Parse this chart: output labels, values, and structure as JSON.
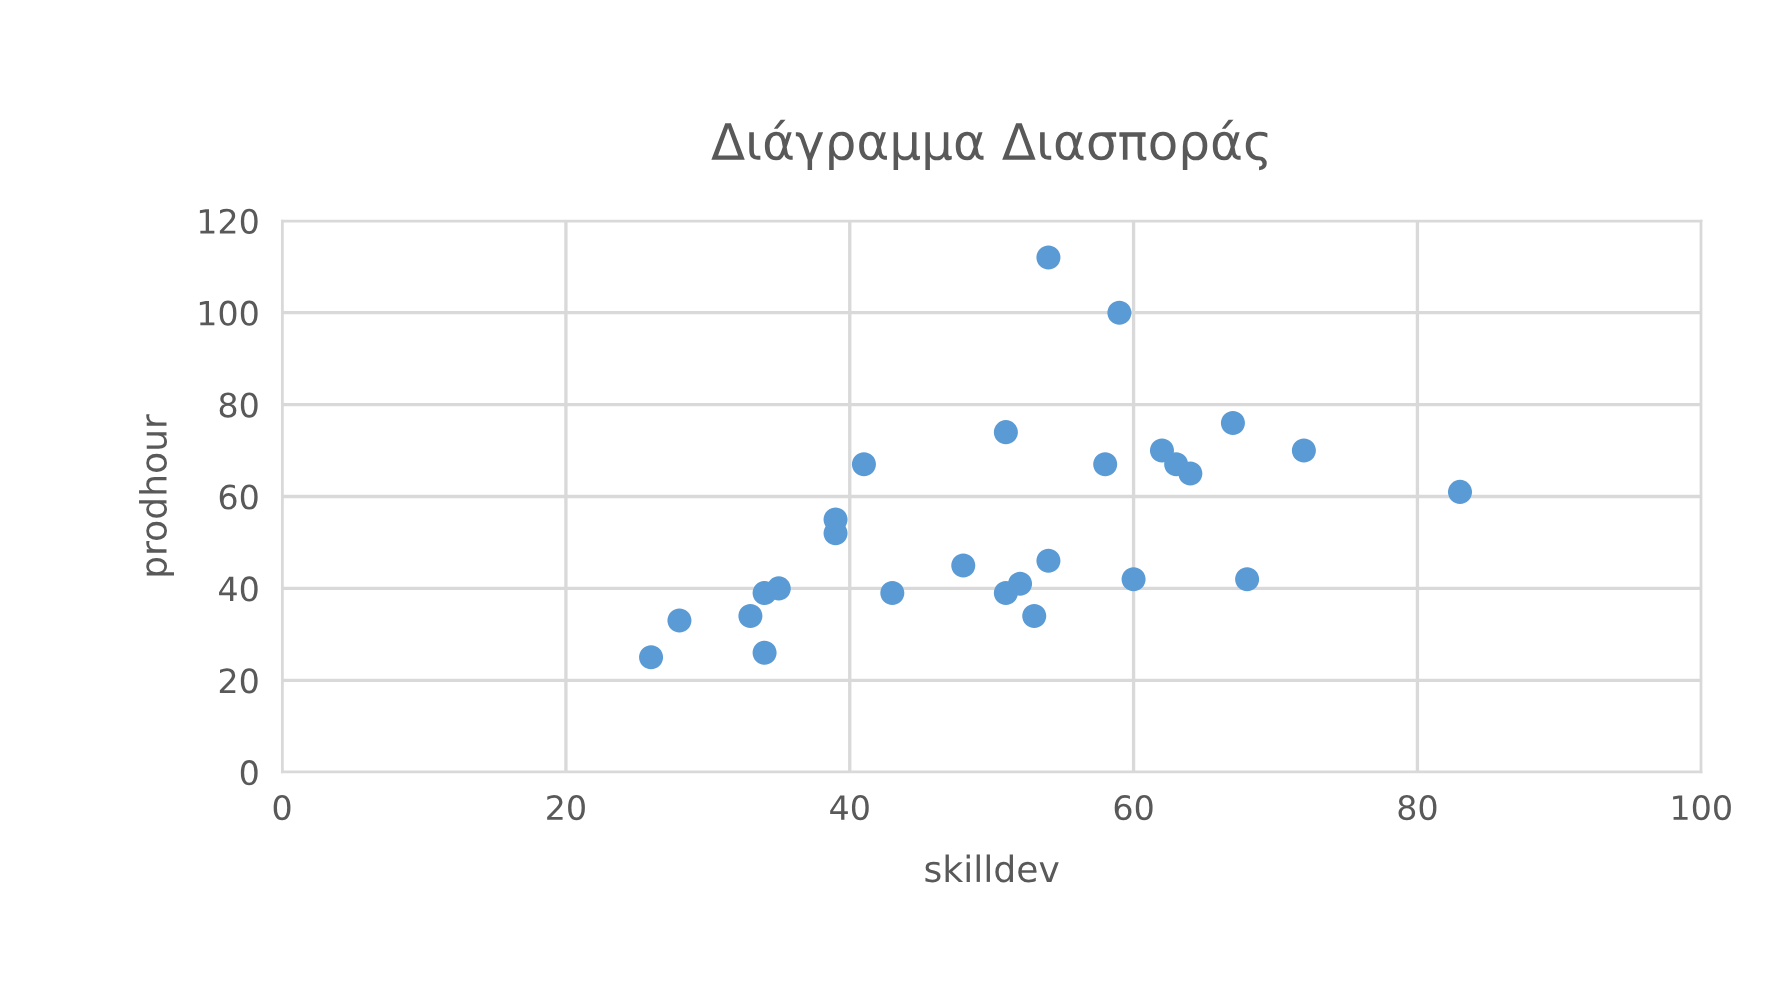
{
  "chart_data": {
    "type": "scatter",
    "title": "Διάγραμμα Διασποράς",
    "xlabel": "skilldev",
    "ylabel": "prodhour",
    "series": [
      {
        "color": "#5b9bd5",
        "x": [
          26,
          28,
          33,
          34,
          35,
          34,
          39,
          39,
          41,
          43,
          48,
          51,
          51,
          52,
          53,
          54,
          54,
          58,
          59,
          60,
          62,
          63,
          64,
          67,
          68,
          72,
          83
        ],
        "values": [
          25,
          33,
          34,
          39,
          40,
          26,
          55,
          52,
          67,
          39,
          45,
          39,
          74,
          41,
          34,
          46,
          112,
          67,
          100,
          42,
          70,
          67,
          65,
          76,
          42,
          70,
          61
        ]
      }
    ],
    "xlim": [
      0,
      100
    ],
    "xticks": [
      0,
      20,
      40,
      60,
      80,
      100
    ],
    "ylim": [
      0,
      120
    ],
    "yticks": [
      0,
      20,
      40,
      60,
      80,
      100,
      120
    ],
    "grid": true,
    "marker": "circle"
  }
}
